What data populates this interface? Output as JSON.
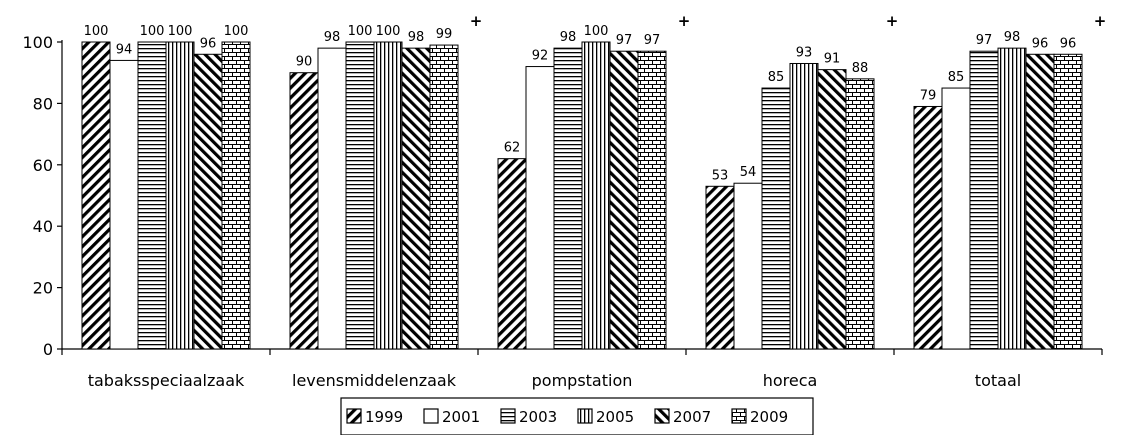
{
  "chart_data": {
    "type": "bar",
    "categories": [
      "tabaksspeciaalzaak",
      "levensmiddelenzaak",
      "pompstation",
      "horeca",
      "totaal"
    ],
    "series": [
      {
        "name": "1999",
        "values": [
          100,
          90,
          62,
          53,
          79
        ],
        "pattern": "diag-right"
      },
      {
        "name": "2001",
        "values": [
          94,
          98,
          92,
          54,
          85
        ],
        "pattern": "blank"
      },
      {
        "name": "2003",
        "values": [
          100,
          100,
          98,
          85,
          97
        ],
        "pattern": "horizontal"
      },
      {
        "name": "2005",
        "values": [
          100,
          100,
          100,
          93,
          98
        ],
        "pattern": "vertical"
      },
      {
        "name": "2007",
        "values": [
          96,
          98,
          97,
          91,
          96
        ],
        "pattern": "diag-left"
      },
      {
        "name": "2009",
        "values": [
          100,
          99,
          97,
          88,
          96
        ],
        "pattern": "brick"
      }
    ],
    "significance_markers": [
      "",
      "+",
      "+",
      "+",
      "+"
    ],
    "yticks": [
      0,
      20,
      40,
      60,
      80,
      100
    ],
    "ylim": [
      0,
      100
    ],
    "title": "",
    "xlabel": "",
    "ylabel": "",
    "grid": false,
    "legend_position": "bottom"
  }
}
